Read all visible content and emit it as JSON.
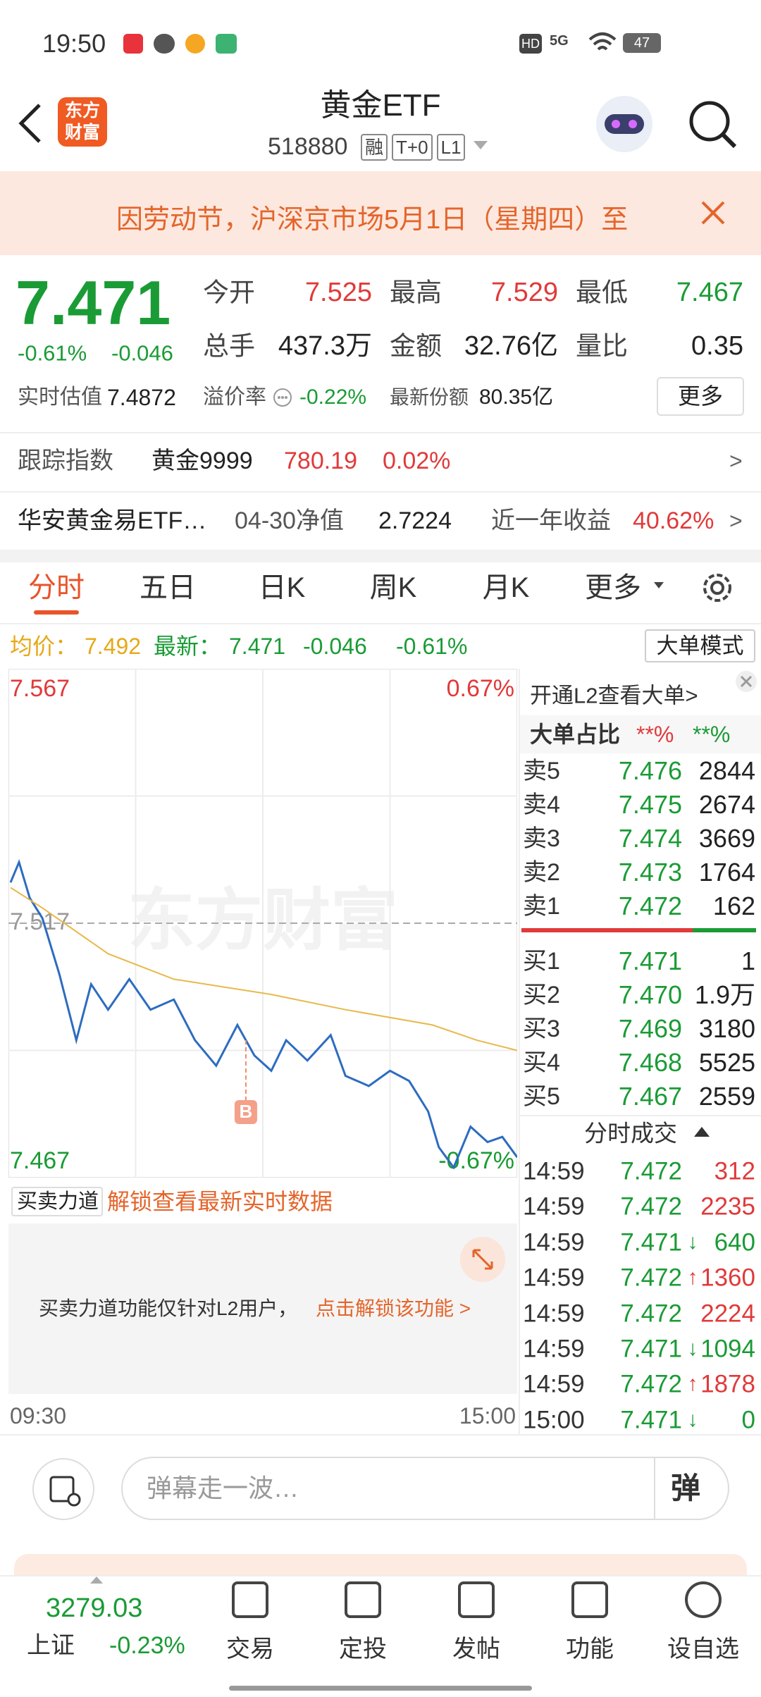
{
  "status": {
    "time": "19:50",
    "net": "5G",
    "battery": "47"
  },
  "header": {
    "logo": "东方财富",
    "title": "黄金ETF",
    "code": "518880",
    "tags": [
      "融",
      "T+0",
      "L1"
    ]
  },
  "notice": "因劳动节，沪深京市场5月1日（星期四）至",
  "quote": {
    "price": "7.471",
    "change_pct": "-0.61%",
    "change": "-0.046",
    "fields": [
      {
        "label": "今开",
        "value": "7.525",
        "trend": "up"
      },
      {
        "label": "最高",
        "value": "7.529",
        "trend": "up"
      },
      {
        "label": "最低",
        "value": "7.467",
        "trend": "down"
      },
      {
        "label": "总手",
        "value": "437.3万",
        "trend": "flat"
      },
      {
        "label": "金额",
        "value": "32.76亿",
        "trend": "flat"
      },
      {
        "label": "量比",
        "value": "0.35",
        "trend": "flat"
      }
    ],
    "estimate_label": "实时估值",
    "estimate": "7.4872",
    "premium_label": "溢价率",
    "premium": "-0.22%",
    "shares_label": "最新份额",
    "shares": "80.35亿",
    "more": "更多"
  },
  "track": {
    "label": "跟踪指数",
    "index": "黄金9999",
    "value": "780.19",
    "pct": "0.02%"
  },
  "fund": {
    "name": "华安黄金易ETF…",
    "nav_label": "04-30净值",
    "nav": "2.7224",
    "return_label": "近一年收益",
    "return": "40.62%"
  },
  "tabs": {
    "items": [
      "分时",
      "五日",
      "日K",
      "周K",
      "月K",
      "更多"
    ],
    "active": 0
  },
  "summary": {
    "avg_label": "均价：",
    "avg": "7.492",
    "last_label": "最新：",
    "last": "7.471",
    "change": "-0.046",
    "pct": "-0.61%",
    "mode": "大单模式"
  },
  "chart": {
    "type": "line",
    "ylim": [
      7.467,
      7.567
    ],
    "yticks": [
      7.567,
      7.517,
      7.467
    ],
    "ygrid": [
      7.542,
      7.492
    ],
    "pct_top": "0.67%",
    "pct_bottom": "-0.67%",
    "xlim": [
      0,
      240
    ],
    "xticks": [
      {
        "value": 0,
        "label": "09:30"
      },
      {
        "value": 240,
        "label": "15:00"
      }
    ],
    "xgrid": [
      60,
      120,
      180
    ],
    "series": [
      {
        "color": "#2d6cc0",
        "x": [
          1,
          5,
          10,
          16,
          24,
          32,
          39,
          47,
          57,
          67,
          78,
          88,
          98,
          108,
          116,
          124,
          131,
          141,
          152,
          159,
          170,
          180,
          189,
          198,
          203,
          210,
          218,
          226,
          233,
          240
        ],
        "values": [
          7.525,
          7.529,
          7.522,
          7.518,
          7.507,
          7.494,
          7.505,
          7.5,
          7.506,
          7.5,
          7.502,
          7.494,
          7.489,
          7.497,
          7.491,
          7.488,
          7.494,
          7.49,
          7.495,
          7.487,
          7.485,
          7.488,
          7.486,
          7.48,
          7.473,
          7.469,
          7.477,
          7.474,
          7.475,
          7.471
        ]
      },
      {
        "color": "#e8b84a",
        "x": [
          1,
          16,
          47,
          78,
          124,
          159,
          200,
          221,
          240
        ],
        "values": [
          7.524,
          7.52,
          7.511,
          7.506,
          7.503,
          7.5,
          7.497,
          7.494,
          7.492
        ]
      }
    ],
    "marker": {
      "label": "B",
      "x": 112,
      "value": 7.494
    }
  },
  "l2": {
    "promo": "开通L2查看大单>",
    "ratio_label": "大单占比",
    "buy_ratio": "**%",
    "sell_ratio": "**%"
  },
  "order_book": {
    "asks": [
      {
        "label": "卖5",
        "price": "7.476",
        "volume": "2844"
      },
      {
        "label": "卖4",
        "price": "7.475",
        "volume": "2674"
      },
      {
        "label": "卖3",
        "price": "7.474",
        "volume": "3669"
      },
      {
        "label": "卖2",
        "price": "7.473",
        "volume": "1764"
      },
      {
        "label": "卖1",
        "price": "7.472",
        "volume": "162"
      }
    ],
    "bids": [
      {
        "label": "买1",
        "price": "7.471",
        "volume": "1"
      },
      {
        "label": "买2",
        "price": "7.470",
        "volume": "1.9万"
      },
      {
        "label": "买3",
        "price": "7.469",
        "volume": "3180"
      },
      {
        "label": "买4",
        "price": "7.468",
        "volume": "5525"
      },
      {
        "label": "买5",
        "price": "7.467",
        "volume": "2559"
      }
    ]
  },
  "trades": {
    "title": "分时成交",
    "rows": [
      {
        "time": "14:59",
        "price": "7.472",
        "volume": "312",
        "side": "buy",
        "dir": null
      },
      {
        "time": "14:59",
        "price": "7.472",
        "volume": "2235",
        "side": "buy",
        "dir": null
      },
      {
        "time": "14:59",
        "price": "7.471",
        "volume": "640",
        "side": "sell",
        "dir": "down"
      },
      {
        "time": "14:59",
        "price": "7.472",
        "volume": "1360",
        "side": "buy",
        "dir": "up"
      },
      {
        "time": "14:59",
        "price": "7.472",
        "volume": "2224",
        "side": "buy",
        "dir": null
      },
      {
        "time": "14:59",
        "price": "7.471",
        "volume": "1094",
        "side": "sell",
        "dir": "down"
      },
      {
        "time": "14:59",
        "price": "7.472",
        "volume": "1878",
        "side": "buy",
        "dir": "up"
      },
      {
        "time": "15:00",
        "price": "7.471",
        "volume": "0",
        "side": "sell",
        "dir": "down"
      }
    ]
  },
  "force": {
    "label": "买卖力道",
    "unlock": "解锁查看最新实时数据",
    "message": "买卖力道功能仅针对L2用户，",
    "action": "点击解锁该功能 >"
  },
  "comment": {
    "placeholder": "弹幕走一波…",
    "button": "弹"
  },
  "nav": {
    "index_value": "3279.03",
    "index_name": "上证",
    "index_change": "-0.23%",
    "items": [
      "交易",
      "定投",
      "发帖",
      "功能",
      "设自选"
    ]
  }
}
